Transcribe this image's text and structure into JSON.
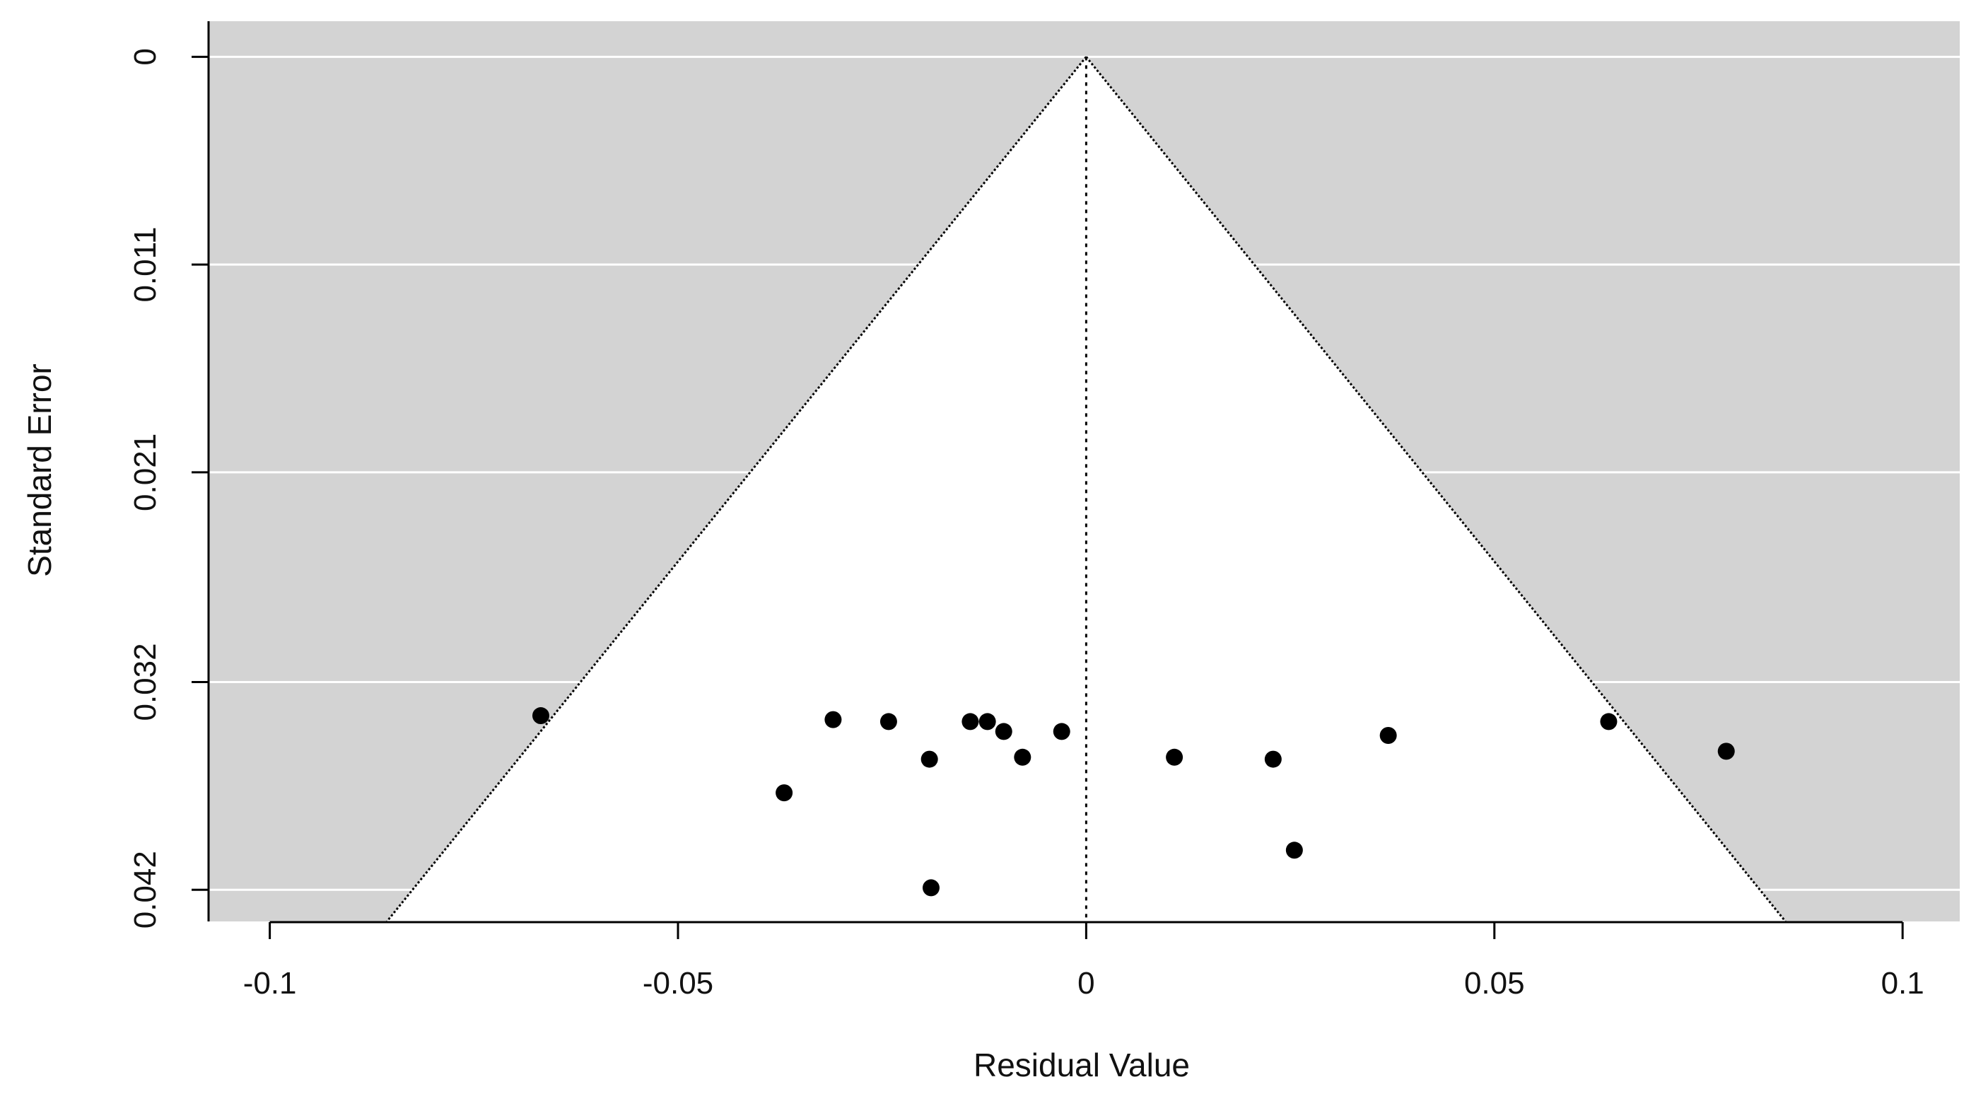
{
  "chart_data": {
    "type": "scatter",
    "subtype": "funnel-plot",
    "xlabel": "Residual Value",
    "ylabel": "Standard Error",
    "xlim": [
      -0.1075,
      0.107
    ],
    "ylim": [
      0.0437,
      -0.0018
    ],
    "y_reversed": true,
    "x_ticks": [
      -0.1,
      -0.05,
      0,
      0.05,
      0.1
    ],
    "x_tick_labels": [
      "-0.1",
      "-0.05",
      "0",
      "0.05",
      "0.1"
    ],
    "y_ticks": [
      0,
      0.0105,
      0.021,
      0.0316,
      0.0421
    ],
    "y_tick_labels": [
      "0",
      "0.011",
      "0.021",
      "0.032",
      "0.042"
    ],
    "funnel": {
      "apex": [
        0,
        0
      ],
      "z_multiplier": 1.96,
      "se_max": 0.0437
    },
    "reference_line_x": 0,
    "grid": "horizontal",
    "background_color": "#d3d3d3",
    "funnel_fill_color": "#ffffff",
    "point_color": "#000000",
    "points": [
      {
        "x": -0.0668,
        "y": 0.0333
      },
      {
        "x": -0.031,
        "y": 0.0335
      },
      {
        "x": -0.0242,
        "y": 0.0336
      },
      {
        "x": -0.0192,
        "y": 0.0355
      },
      {
        "x": -0.037,
        "y": 0.0372
      },
      {
        "x": -0.019,
        "y": 0.042
      },
      {
        "x": -0.0142,
        "y": 0.0336
      },
      {
        "x": -0.0121,
        "y": 0.0336
      },
      {
        "x": -0.0101,
        "y": 0.0341
      },
      {
        "x": -0.0078,
        "y": 0.0354
      },
      {
        "x": -0.003,
        "y": 0.0341
      },
      {
        "x": 0.0108,
        "y": 0.0354
      },
      {
        "x": 0.0229,
        "y": 0.0355
      },
      {
        "x": 0.0255,
        "y": 0.0401
      },
      {
        "x": 0.037,
        "y": 0.0343
      },
      {
        "x": 0.064,
        "y": 0.0336
      },
      {
        "x": 0.0784,
        "y": 0.0351
      }
    ]
  }
}
